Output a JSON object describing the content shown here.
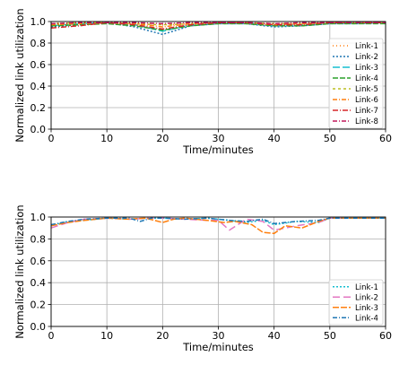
{
  "chart_data": [
    {
      "type": "line",
      "xlabel": "Time/minutes",
      "ylabel": "Normalized link utilization",
      "xlim": [
        0,
        60
      ],
      "ylim": [
        0,
        1.0
      ],
      "xticks": [
        "0",
        "10",
        "20",
        "30",
        "40",
        "50",
        "60"
      ],
      "yticks": [
        "0.0",
        "0.2",
        "0.4",
        "0.6",
        "0.8",
        "1.0"
      ],
      "grid": true,
      "legend_position": "lower-right",
      "series": [
        {
          "name": "Link-1",
          "color": "#ff7f0e",
          "dash": "1,3",
          "x": [
            0,
            5,
            10,
            15,
            20,
            25,
            30,
            35,
            40,
            45,
            50,
            55,
            60
          ],
          "y": [
            0.97,
            0.98,
            0.99,
            0.98,
            0.97,
            0.98,
            0.99,
            0.99,
            0.98,
            0.98,
            0.99,
            0.99,
            0.99
          ]
        },
        {
          "name": "Link-2",
          "color": "#1f77b4",
          "dash": "2,2",
          "x": [
            0,
            5,
            10,
            15,
            20,
            25,
            30,
            35,
            40,
            45,
            50,
            55,
            60
          ],
          "y": [
            0.95,
            0.97,
            0.99,
            0.95,
            0.88,
            0.96,
            0.98,
            0.98,
            0.95,
            0.96,
            0.98,
            0.98,
            0.99
          ]
        },
        {
          "name": "Link-3",
          "color": "#17becf",
          "dash": "8,3",
          "x": [
            0,
            5,
            10,
            15,
            20,
            25,
            30,
            35,
            40,
            45,
            50,
            55,
            60
          ],
          "y": [
            0.96,
            0.98,
            0.99,
            0.97,
            0.91,
            0.97,
            0.99,
            0.99,
            0.96,
            0.97,
            0.99,
            0.99,
            0.99
          ]
        },
        {
          "name": "Link-4",
          "color": "#2ca02c",
          "dash": "6,2",
          "x": [
            0,
            5,
            10,
            15,
            20,
            25,
            30,
            35,
            40,
            45,
            50,
            55,
            60
          ],
          "y": [
            0.96,
            0.97,
            0.98,
            0.96,
            0.92,
            0.96,
            0.98,
            0.98,
            0.96,
            0.96,
            0.98,
            0.98,
            0.98
          ]
        },
        {
          "name": "Link-5",
          "color": "#bcbd22",
          "dash": "3,3",
          "x": [
            0,
            5,
            10,
            15,
            20,
            25,
            30,
            35,
            40,
            45,
            50,
            55,
            60
          ],
          "y": [
            0.98,
            0.99,
            0.99,
            0.98,
            0.97,
            0.98,
            0.99,
            0.99,
            0.98,
            0.98,
            0.99,
            0.99,
            0.99
          ]
        },
        {
          "name": "Link-6",
          "color": "#ff7f0e",
          "dash": "5,2,1,2",
          "x": [
            0,
            5,
            10,
            15,
            20,
            25,
            30,
            35,
            40,
            45,
            50,
            55,
            60
          ],
          "y": [
            0.97,
            0.98,
            0.99,
            0.98,
            0.95,
            0.98,
            0.99,
            0.99,
            0.97,
            0.98,
            0.99,
            0.99,
            0.99
          ]
        },
        {
          "name": "Link-7",
          "color": "#d62728",
          "dash": "6,2,1,2",
          "x": [
            0,
            5,
            10,
            15,
            20,
            25,
            30,
            35,
            40,
            45,
            50,
            55,
            60
          ],
          "y": [
            0.94,
            0.96,
            0.99,
            0.97,
            0.93,
            0.97,
            0.99,
            0.99,
            0.97,
            0.97,
            0.99,
            0.99,
            0.99
          ]
        },
        {
          "name": "Link-8",
          "color": "#c2185b",
          "dash": "5,2,1,2",
          "x": [
            0,
            5,
            10,
            15,
            20,
            25,
            30,
            35,
            40,
            45,
            50,
            55,
            60
          ],
          "y": [
            0.98,
            0.99,
            0.99,
            0.99,
            0.98,
            0.99,
            0.99,
            0.99,
            0.98,
            0.99,
            0.99,
            0.99,
            0.99
          ]
        }
      ]
    },
    {
      "type": "line",
      "xlabel": "Time/minutes",
      "ylabel": "Normalized link utilization",
      "xlim": [
        0,
        60
      ],
      "ylim": [
        0,
        1.0
      ],
      "xticks": [
        "0",
        "10",
        "20",
        "30",
        "40",
        "50",
        "60"
      ],
      "yticks": [
        "0.0",
        "0.2",
        "0.4",
        "0.6",
        "0.8",
        "1.0"
      ],
      "grid": true,
      "legend_position": "lower-right",
      "series": [
        {
          "name": "Link-1",
          "color": "#17becf",
          "dash": "2,2",
          "x": [
            0,
            3,
            6,
            10,
            14,
            18,
            20,
            24,
            28,
            32,
            35,
            38,
            40,
            44,
            48,
            50,
            55,
            60
          ],
          "y": [
            0.92,
            0.96,
            0.97,
            0.99,
            0.98,
            0.99,
            0.99,
            0.98,
            0.99,
            0.97,
            0.95,
            0.97,
            0.93,
            0.96,
            0.95,
            0.99,
            0.99,
            0.99
          ]
        },
        {
          "name": "Link-2",
          "color": "#e377c2",
          "dash": "8,4",
          "x": [
            0,
            3,
            6,
            10,
            14,
            18,
            20,
            24,
            28,
            30,
            32,
            35,
            38,
            40,
            44,
            48,
            50,
            55,
            60
          ],
          "y": [
            0.9,
            0.95,
            0.98,
            0.99,
            0.98,
            0.99,
            0.99,
            0.98,
            0.97,
            0.97,
            0.88,
            0.98,
            0.96,
            0.88,
            0.92,
            0.95,
            0.99,
            0.99,
            0.99
          ]
        },
        {
          "name": "Link-3",
          "color": "#ff7f0e",
          "dash": "7,2",
          "x": [
            0,
            3,
            6,
            10,
            14,
            17,
            20,
            22,
            24,
            28,
            31,
            33,
            36,
            38,
            40,
            42,
            45,
            48,
            50,
            55,
            60
          ],
          "y": [
            0.92,
            0.95,
            0.97,
            0.99,
            0.98,
            0.99,
            0.95,
            0.98,
            0.99,
            0.97,
            0.95,
            0.96,
            0.93,
            0.86,
            0.85,
            0.92,
            0.9,
            0.96,
            0.99,
            0.99,
            0.99
          ]
        },
        {
          "name": "Link-4",
          "color": "#1f77b4",
          "dash": "5,2,1,2",
          "x": [
            0,
            3,
            6,
            10,
            14,
            16,
            18,
            20,
            24,
            28,
            32,
            35,
            38,
            40,
            44,
            48,
            50,
            55,
            60
          ],
          "y": [
            0.93,
            0.96,
            0.98,
            0.99,
            0.99,
            0.96,
            0.99,
            0.99,
            0.98,
            0.99,
            0.97,
            0.96,
            0.98,
            0.94,
            0.96,
            0.97,
            0.99,
            0.99,
            0.99
          ]
        }
      ]
    }
  ]
}
